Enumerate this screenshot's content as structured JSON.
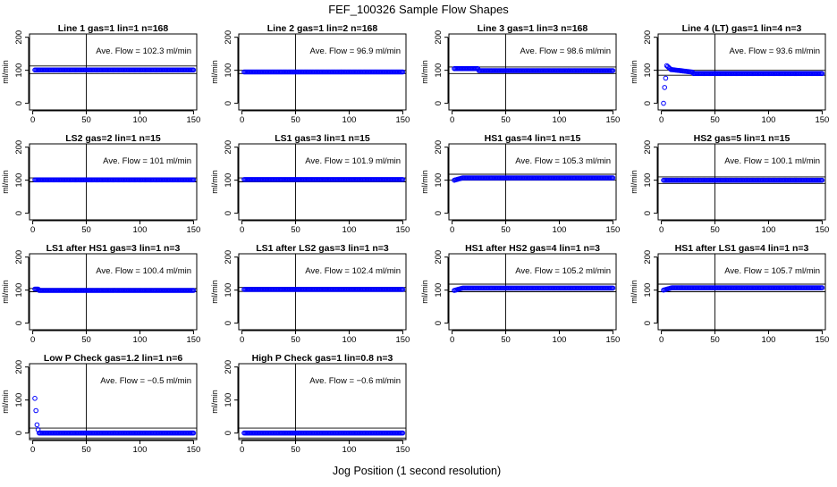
{
  "figure_title": "FEF_100326  Sample Flow Shapes",
  "figure_xlabel": "Jog Position (1 second resolution)",
  "ylabel": "ml/min",
  "flow_label": "Ave. Flow =",
  "flow_unit": "ml/min",
  "colors": {
    "points": "#0000ff",
    "axis": "#000000"
  },
  "chart_data": [
    {
      "type": "scatter",
      "title": "Line 1 gas=1 lin=1 n=168",
      "avg_flow": "102.3",
      "xlim": [
        0,
        150
      ],
      "ylim": [
        -20,
        210
      ],
      "xticks": [
        0,
        50,
        100,
        150
      ],
      "yticks": [
        0,
        100,
        200
      ],
      "vline": 50,
      "hlines": [
        90,
        113
      ],
      "shape": "flat",
      "level": 101
    },
    {
      "type": "scatter",
      "title": "Line 2 gas=1 lin=2 n=168",
      "avg_flow": "96.9",
      "xlim": [
        0,
        150
      ],
      "ylim": [
        -20,
        210
      ],
      "xticks": [
        0,
        50,
        100,
        150
      ],
      "yticks": [
        0,
        100,
        200
      ],
      "vline": 50,
      "hlines": [
        90,
        100
      ],
      "shape": "flat",
      "level": 95
    },
    {
      "type": "scatter",
      "title": "Line 3 gas=1 lin=3 n=168",
      "avg_flow": "98.6",
      "xlim": [
        0,
        150
      ],
      "ylim": [
        -20,
        210
      ],
      "xticks": [
        0,
        50,
        100,
        150
      ],
      "yticks": [
        0,
        100,
        200
      ],
      "vline": 50,
      "hlines": [
        90,
        110
      ],
      "shape": "hump",
      "level": 99
    },
    {
      "type": "scatter",
      "title": "Line 4 (LT) gas=1 lin=4 n=3",
      "avg_flow": "93.6",
      "xlim": [
        0,
        150
      ],
      "ylim": [
        -20,
        210
      ],
      "xticks": [
        0,
        50,
        100,
        150
      ],
      "yticks": [
        0,
        100,
        200
      ],
      "vline": 50,
      "hlines": [
        85,
        100
      ],
      "shape": "rampup",
      "level": 90
    },
    {
      "type": "scatter",
      "title": "LS2 gas=2 lin=1 n=15",
      "avg_flow": "101",
      "xlim": [
        0,
        150
      ],
      "ylim": [
        -20,
        210
      ],
      "xticks": [
        0,
        50,
        100,
        150
      ],
      "yticks": [
        0,
        100,
        200
      ],
      "vline": 50,
      "hlines": [
        95,
        107
      ],
      "shape": "flat",
      "level": 101
    },
    {
      "type": "scatter",
      "title": "LS1 gas=3 lin=1 n=15",
      "avg_flow": "101.9",
      "xlim": [
        0,
        150
      ],
      "ylim": [
        -20,
        210
      ],
      "xticks": [
        0,
        50,
        100,
        150
      ],
      "yticks": [
        0,
        100,
        200
      ],
      "vline": 50,
      "hlines": [
        95,
        107
      ],
      "shape": "flat",
      "level": 102
    },
    {
      "type": "scatter",
      "title": "HS1 gas=4 lin=1 n=15",
      "avg_flow": "105.3",
      "xlim": [
        0,
        150
      ],
      "ylim": [
        -20,
        210
      ],
      "xticks": [
        0,
        50,
        100,
        150
      ],
      "yticks": [
        0,
        100,
        200
      ],
      "vline": 50,
      "hlines": [
        100,
        118
      ],
      "shape": "rise",
      "level": 107
    },
    {
      "type": "scatter",
      "title": "HS2 gas=5 lin=1 n=15",
      "avg_flow": "100.1",
      "xlim": [
        0,
        150
      ],
      "ylim": [
        -20,
        210
      ],
      "xticks": [
        0,
        50,
        100,
        150
      ],
      "yticks": [
        0,
        100,
        200
      ],
      "vline": 50,
      "hlines": [
        90,
        110
      ],
      "shape": "flat",
      "level": 100
    },
    {
      "type": "scatter",
      "title": "LS1 after HS1 gas=3 lin=1 n=3",
      "avg_flow": "100.4",
      "xlim": [
        0,
        150
      ],
      "ylim": [
        -20,
        210
      ],
      "xticks": [
        0,
        50,
        100,
        150
      ],
      "yticks": [
        0,
        100,
        200
      ],
      "vline": 50,
      "hlines": [
        95,
        105
      ],
      "shape": "drop",
      "level": 99
    },
    {
      "type": "scatter",
      "title": "LS1 after LS2 gas=3 lin=1 n=3",
      "avg_flow": "102.4",
      "xlim": [
        0,
        150
      ],
      "ylim": [
        -20,
        210
      ],
      "xticks": [
        0,
        50,
        100,
        150
      ],
      "yticks": [
        0,
        100,
        200
      ],
      "vline": 50,
      "hlines": [
        96,
        108
      ],
      "shape": "flat",
      "level": 102
    },
    {
      "type": "scatter",
      "title": "HS1 after HS2 gas=4 lin=1 n=3",
      "avg_flow": "105.2",
      "xlim": [
        0,
        150
      ],
      "ylim": [
        -20,
        210
      ],
      "xticks": [
        0,
        50,
        100,
        150
      ],
      "yticks": [
        0,
        100,
        200
      ],
      "vline": 50,
      "hlines": [
        95,
        118
      ],
      "shape": "rise",
      "level": 106
    },
    {
      "type": "scatter",
      "title": "HS1 after LS1 gas=4 lin=1 n=3",
      "avg_flow": "105.7",
      "xlim": [
        0,
        150
      ],
      "ylim": [
        -20,
        210
      ],
      "xticks": [
        0,
        50,
        100,
        150
      ],
      "yticks": [
        0,
        100,
        200
      ],
      "vline": 50,
      "hlines": [
        95,
        118
      ],
      "shape": "rise",
      "level": 107
    },
    {
      "type": "scatter",
      "title": "Low P Check gas=1.2 lin=1 n=6",
      "avg_flow": "−0.5",
      "xlim": [
        0,
        150
      ],
      "ylim": [
        -20,
        210
      ],
      "xticks": [
        0,
        50,
        100,
        150
      ],
      "yticks": [
        0,
        100,
        200
      ],
      "vline": 50,
      "hlines": [
        -15,
        15
      ],
      "shape": "decay",
      "level": 0
    },
    {
      "type": "scatter",
      "title": "High P Check gas=1 lin=0.8 n=3",
      "avg_flow": "−0.6",
      "xlim": [
        0,
        150
      ],
      "ylim": [
        -20,
        210
      ],
      "xticks": [
        0,
        50,
        100,
        150
      ],
      "yticks": [
        0,
        100,
        200
      ],
      "vline": 50,
      "hlines": [
        -15,
        15
      ],
      "shape": "flat",
      "level": 0
    }
  ]
}
